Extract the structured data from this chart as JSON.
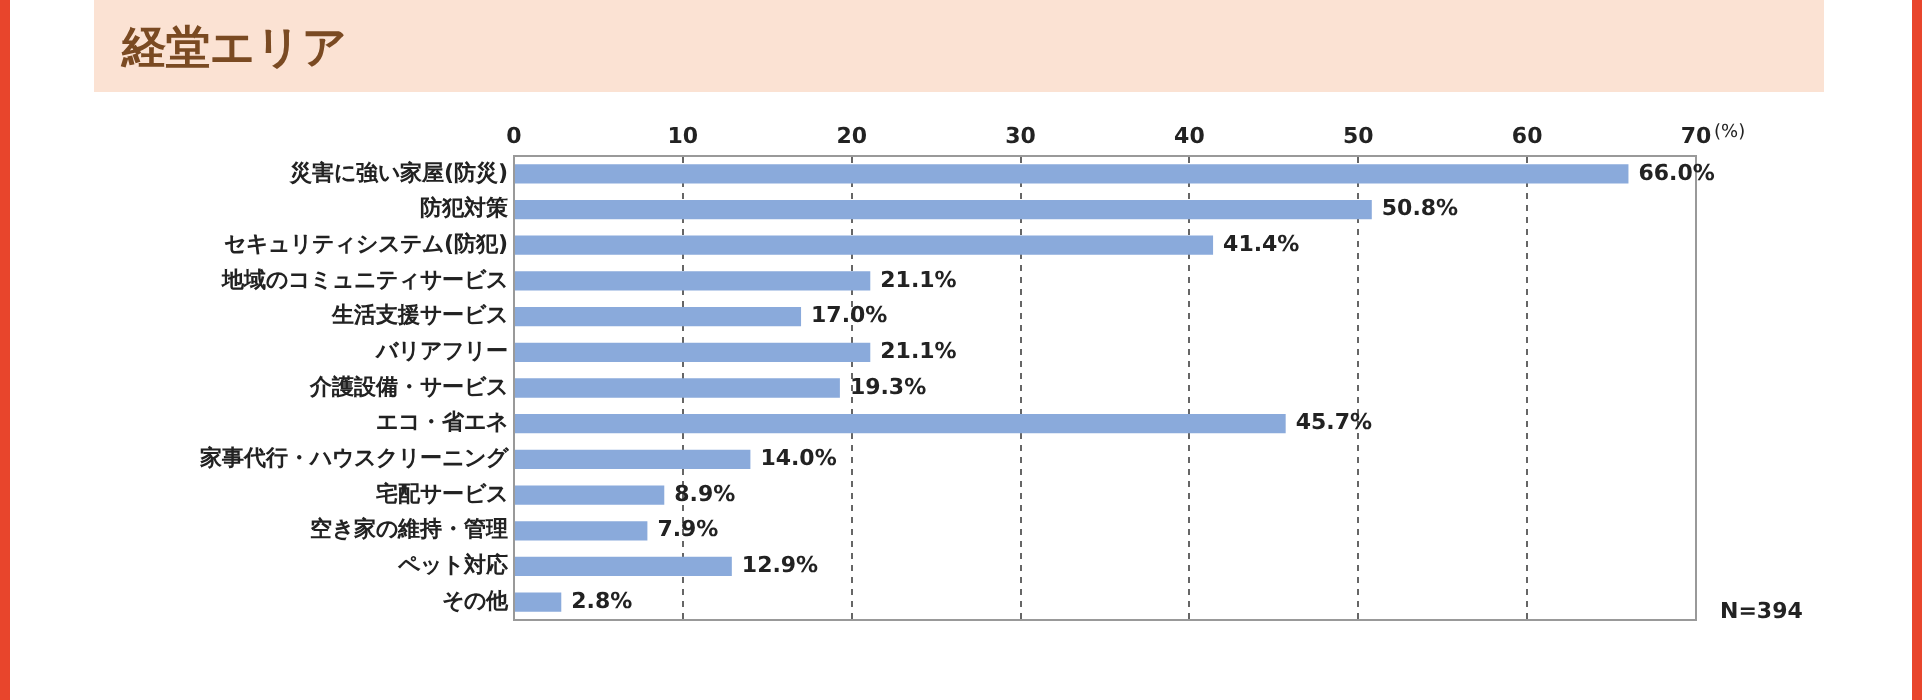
{
  "chart_data": {
    "type": "bar",
    "orientation": "horizontal",
    "title": "経堂エリア",
    "xlabel": "(%)",
    "categories": [
      "災害に強い家屋(防災)",
      "防犯対策",
      "セキュリティシステム(防犯)",
      "地域のコミュニティサービス",
      "生活支援サービス",
      "バリアフリー",
      "介護設備・サービス",
      "エコ・省エネ",
      "家事代行・ハウスクリーニング",
      "宅配サービス",
      "空き家の維持・管理",
      "ペット対応",
      "その他"
    ],
    "values": [
      66.0,
      50.8,
      41.4,
      21.1,
      17.0,
      21.1,
      19.3,
      45.7,
      14.0,
      8.9,
      7.9,
      12.9,
      2.8
    ],
    "value_labels": [
      "66.0%",
      "50.8%",
      "41.4%",
      "21.1%",
      "17.0%",
      "21.1%",
      "19.3%",
      "45.7%",
      "14.0%",
      "8.9%",
      "7.9%",
      "12.9%",
      "2.8%"
    ],
    "color": "#8aaadb",
    "xlim": [
      0,
      70
    ],
    "xticks": [
      0,
      10,
      20,
      30,
      40,
      50,
      60,
      70
    ],
    "grid": "x",
    "legend": false,
    "annotations": [
      "N=394"
    ]
  }
}
